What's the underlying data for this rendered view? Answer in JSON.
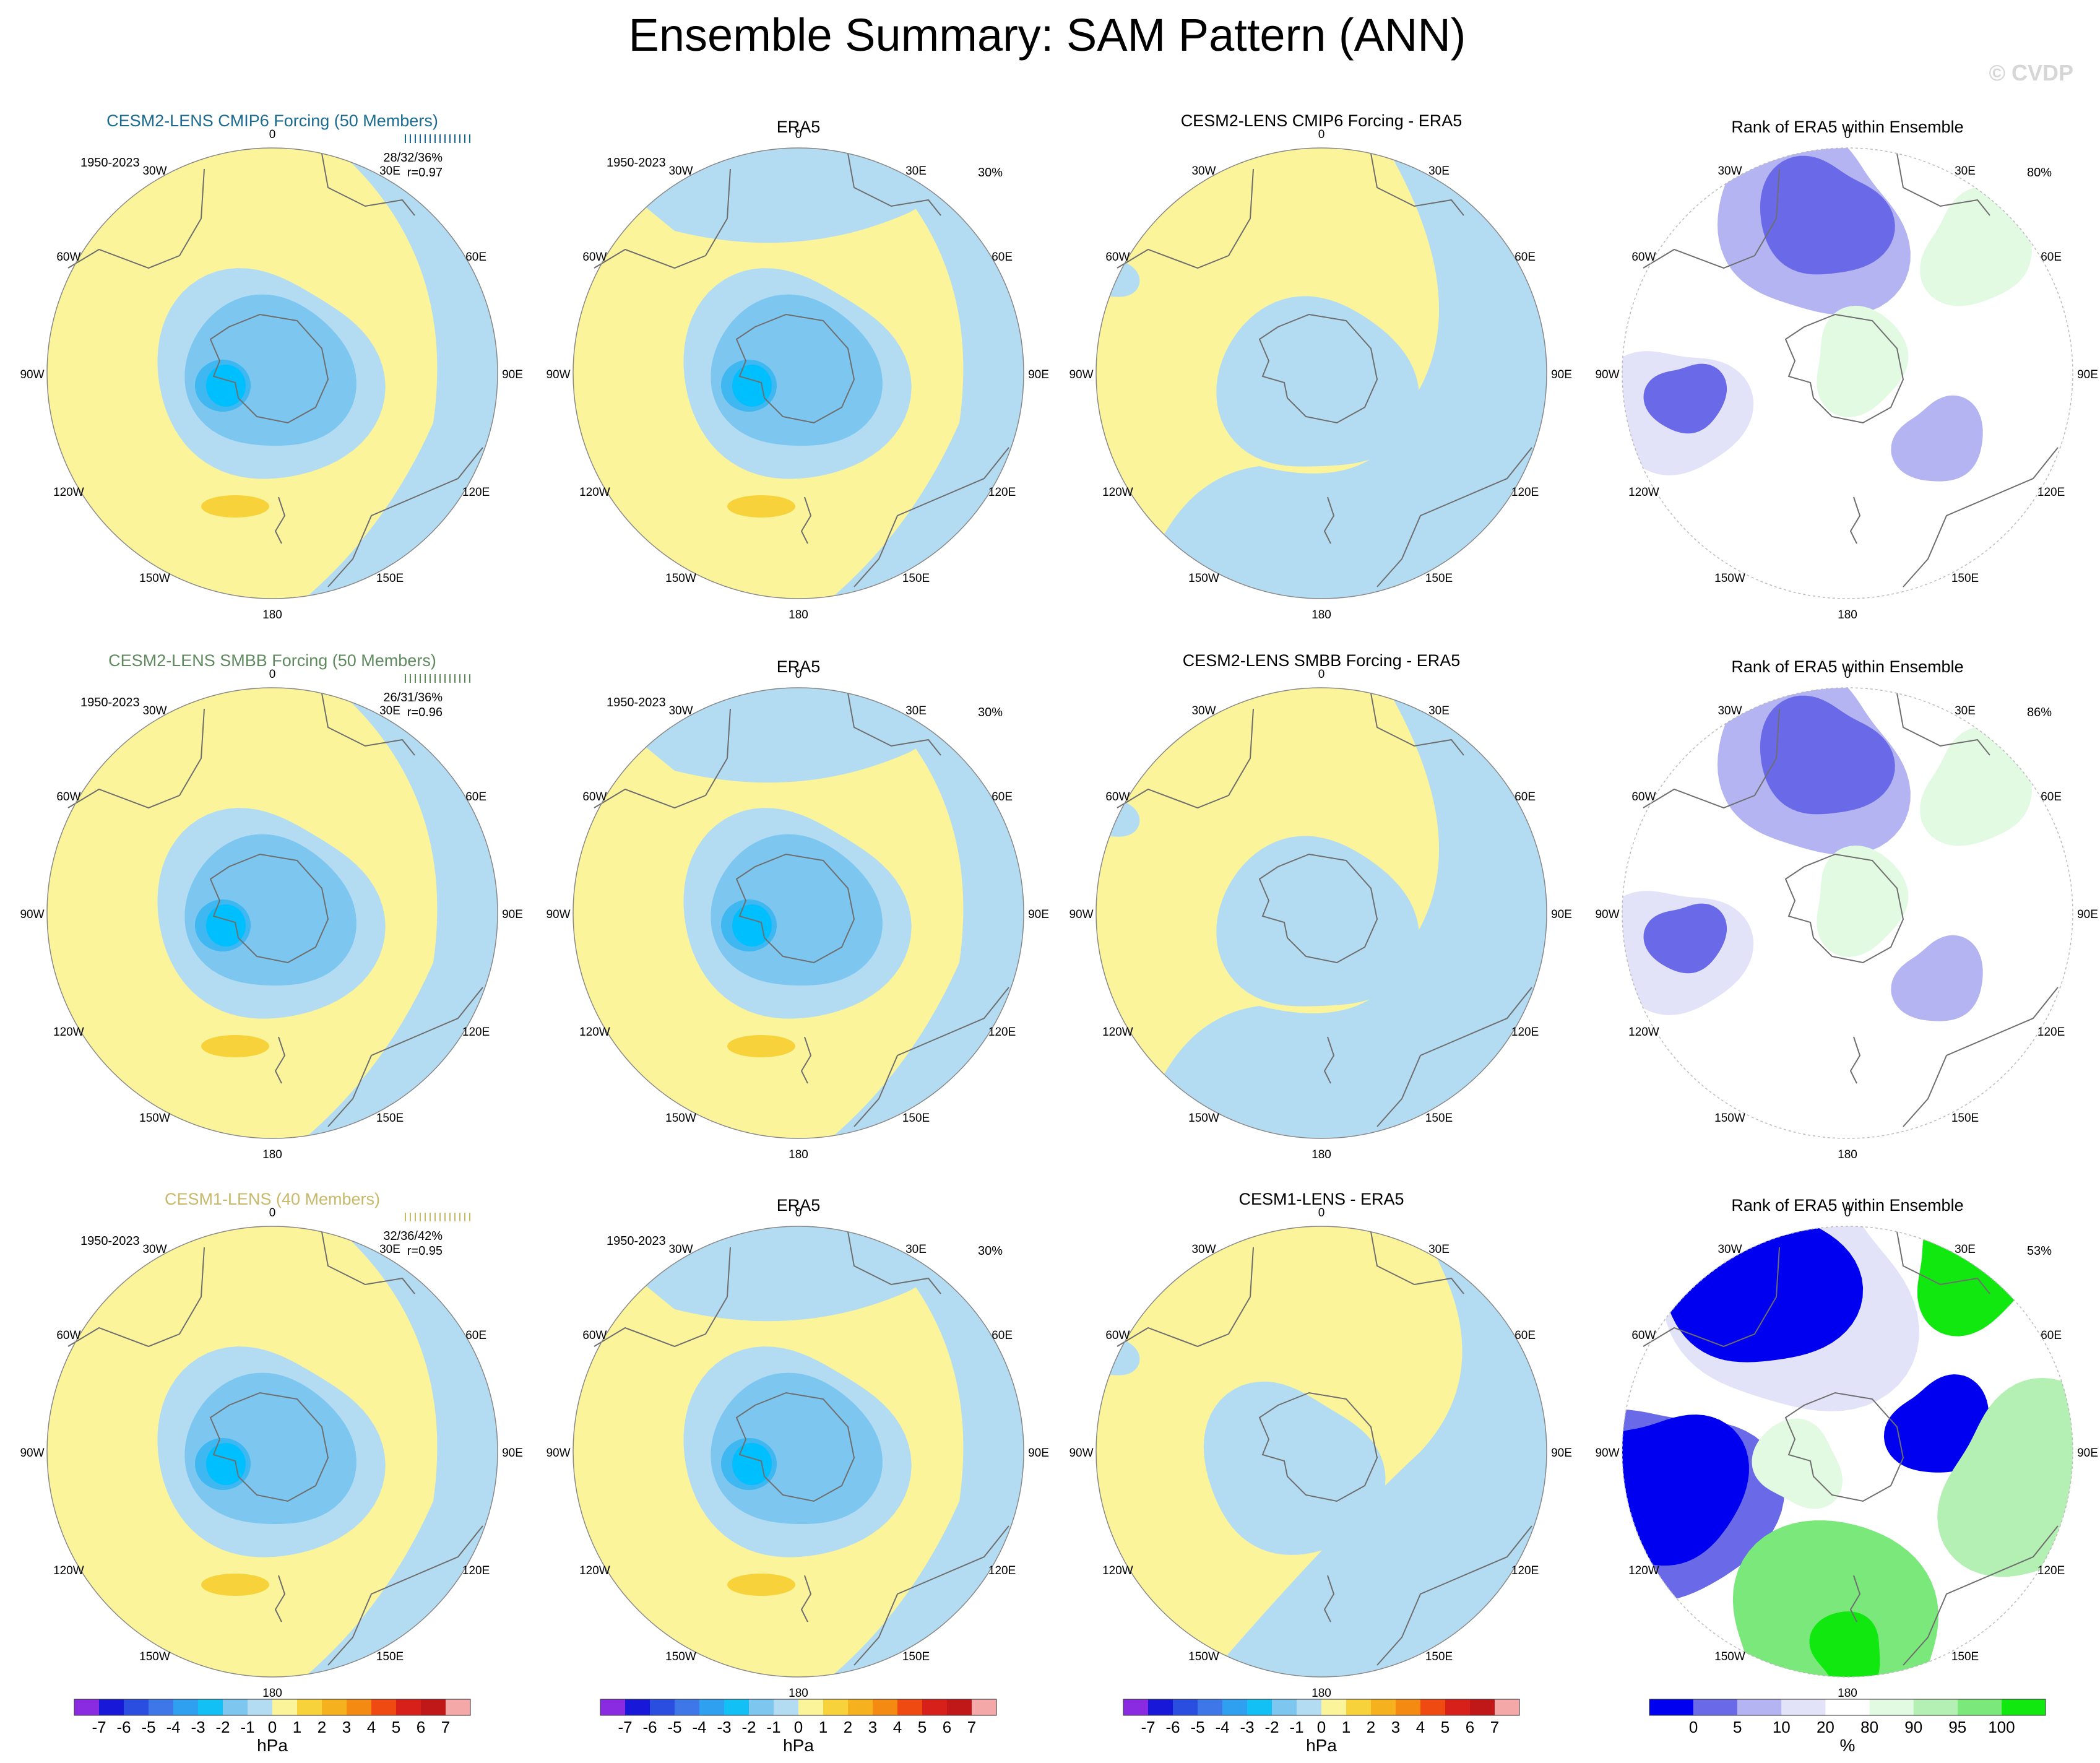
{
  "title": "Ensemble Summary: SAM Pattern (ANN)",
  "watermark": "© CVDP",
  "colors": {
    "light_blue": "#b3dcf2",
    "mid_blue": "#7cc6f0",
    "deep_blue": "#3fb7f0",
    "cyan": "#00bfff",
    "pale_yellow": "#fbf49b",
    "gold": "#f7d23a",
    "coast": "#6e6e6e"
  },
  "period": "1950-2023",
  "lon_labels": [
    "0",
    "30E",
    "60E",
    "90E",
    "120E",
    "150E",
    "180",
    "150W",
    "120W",
    "90W",
    "60W",
    "30W"
  ],
  "rows": [
    {
      "ensemble": {
        "title": "CESM2-LENS CMIP6 Forcing (50 Members)",
        "title_color": "#1a6b8f",
        "stats": "28/32/36%",
        "corr": "r=0.97"
      },
      "era5": {
        "title": "ERA5",
        "pct": "30%"
      },
      "diff": {
        "title": "CESM2-LENS CMIP6 Forcing - ERA5"
      },
      "rank": {
        "title": "Rank of ERA5 within Ensemble",
        "pct": "80%"
      }
    },
    {
      "ensemble": {
        "title": "CESM2-LENS SMBB Forcing (50 Members)",
        "title_color": "#5e8a5e",
        "stats": "26/31/36%",
        "corr": "r=0.96"
      },
      "era5": {
        "title": "ERA5",
        "pct": "30%"
      },
      "diff": {
        "title": "CESM2-LENS SMBB Forcing - ERA5"
      },
      "rank": {
        "title": "Rank of ERA5 within Ensemble",
        "pct": "86%"
      }
    },
    {
      "ensemble": {
        "title": "CESM1-LENS (40 Members)",
        "title_color": "#c8b86a",
        "stats": "32/36/42%",
        "corr": "r=0.95"
      },
      "era5": {
        "title": "ERA5",
        "pct": "30%"
      },
      "diff": {
        "title": "CESM1-LENS - ERA5"
      },
      "rank": {
        "title": "Rank of ERA5 within Ensemble",
        "pct": "53%"
      }
    }
  ],
  "colorbars": {
    "hpa": {
      "unit": "hPa",
      "labels": [
        "-7",
        "-6",
        "-5",
        "-4",
        "-3",
        "-2",
        "-1",
        "0",
        "1",
        "2",
        "3",
        "4",
        "5",
        "6",
        "7"
      ],
      "colors": [
        "#8a2be2",
        "#1818d8",
        "#2a4ee0",
        "#3e78e8",
        "#2fa0ef",
        "#12c0f5",
        "#7cc6f0",
        "#b3dcf2",
        "#fbf49b",
        "#f7d23a",
        "#f5b21e",
        "#f58a12",
        "#ee4a12",
        "#d8201a",
        "#c01818",
        "#f4a8a8"
      ]
    },
    "rank": {
      "unit": "%",
      "labels": [
        "0",
        "5",
        "10",
        "20",
        "80",
        "90",
        "95",
        "100"
      ],
      "colors": [
        "#0000f0",
        "#6a6ae8",
        "#b4b4f2",
        "#e2e2f8",
        "#ffffff",
        "#e2fae2",
        "#b4f0b4",
        "#7ae87a",
        "#10e810"
      ]
    }
  },
  "chart_data": {
    "type": "heatmap",
    "title": "Ensemble Summary: SAM Pattern (ANN)",
    "projection": "south polar stereographic",
    "period": "1950-2023",
    "contour_levels_hpa": [
      -7,
      -6,
      -5,
      -4,
      -3,
      -2,
      -1,
      0,
      1,
      2,
      3,
      4,
      5,
      6,
      7
    ],
    "rank_levels_pct": [
      0,
      5,
      10,
      20,
      80,
      90,
      95,
      100
    ],
    "panels": [
      {
        "row": 1,
        "column": "ensemble mean",
        "model": "CESM2-LENS CMIP6 Forcing (50 Members)",
        "pct_variance_min_mean_max": [
          28,
          32,
          36
        ],
        "pattern_correlation": 0.97
      },
      {
        "row": 1,
        "column": "observations",
        "model": "ERA5",
        "pct_variance": 30
      },
      {
        "row": 1,
        "column": "difference",
        "model": "CESM2-LENS CMIP6 Forcing - ERA5"
      },
      {
        "row": 1,
        "column": "rank",
        "model": "Rank of ERA5 within Ensemble",
        "pct_area": 80
      },
      {
        "row": 2,
        "column": "ensemble mean",
        "model": "CESM2-LENS SMBB Forcing (50 Members)",
        "pct_variance_min_mean_max": [
          26,
          31,
          36
        ],
        "pattern_correlation": 0.96
      },
      {
        "row": 2,
        "column": "observations",
        "model": "ERA5",
        "pct_variance": 30
      },
      {
        "row": 2,
        "column": "difference",
        "model": "CESM2-LENS SMBB Forcing - ERA5"
      },
      {
        "row": 2,
        "column": "rank",
        "model": "Rank of ERA5 within Ensemble",
        "pct_area": 86
      },
      {
        "row": 3,
        "column": "ensemble mean",
        "model": "CESM1-LENS (40 Members)",
        "pct_variance_min_mean_max": [
          32,
          36,
          42
        ],
        "pattern_correlation": 0.95
      },
      {
        "row": 3,
        "column": "observations",
        "model": "ERA5",
        "pct_variance": 30
      },
      {
        "row": 3,
        "column": "difference",
        "model": "CESM1-LENS - ERA5"
      },
      {
        "row": 3,
        "column": "rank",
        "model": "Rank of ERA5 within Ensemble",
        "pct_area": 53
      }
    ]
  }
}
